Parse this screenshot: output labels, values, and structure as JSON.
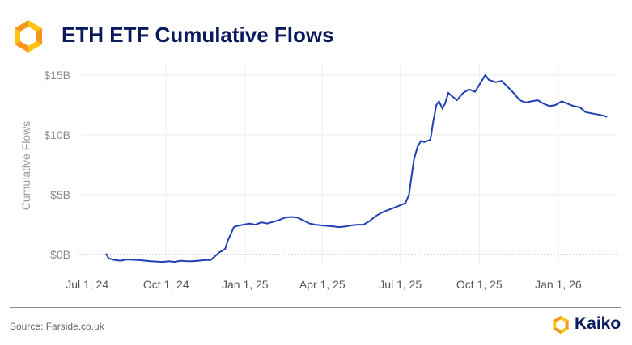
{
  "header": {
    "title": "ETH ETF Cumulative Flows",
    "logo_icon": "kaiko-logo-icon"
  },
  "footer": {
    "source": "Source: Farside.co.uk",
    "brand": "Kaiko"
  },
  "colors": {
    "line": "#1f3fb5",
    "title": "#0b1a5c",
    "logo_orange": "#f7941d",
    "logo_yellow": "#ffc20e",
    "zero_line": "#a0a0a0",
    "grid": "#eeeeee"
  },
  "chart_data": {
    "type": "line",
    "title": "ETH ETF Cumulative Flows",
    "xlabel": "",
    "ylabel": "Cumulative Flows",
    "xlim": [
      "2024-06-20",
      "2026-03-10"
    ],
    "ylim": [
      -1,
      16
    ],
    "x_ticks": [
      "2024-07-01",
      "2024-10-01",
      "2025-01-01",
      "2025-04-01",
      "2025-07-01",
      "2025-10-01",
      "2026-01-01"
    ],
    "x_tick_labels": [
      "Jul 1, 24",
      "Oct 1, 24",
      "Jan 1, 25",
      "Apr 1, 25",
      "Jul 1, 25",
      "Oct 1, 25",
      "Jan 1, 26"
    ],
    "y_ticks": [
      0,
      5,
      10,
      15
    ],
    "y_tick_labels": [
      "$0B",
      "$5B",
      "$10B",
      "$15B"
    ],
    "grid": true,
    "zero_line": "dashed",
    "series": [
      {
        "values": [
          [
            "2024-07-23",
            0.1
          ],
          [
            "2024-07-26",
            -0.3
          ],
          [
            "2024-08-02",
            -0.45
          ],
          [
            "2024-08-09",
            -0.5
          ],
          [
            "2024-08-16",
            -0.4
          ],
          [
            "2024-08-30",
            -0.45
          ],
          [
            "2024-09-13",
            -0.55
          ],
          [
            "2024-09-27",
            -0.6
          ],
          [
            "2024-10-04",
            -0.55
          ],
          [
            "2024-10-11",
            -0.6
          ],
          [
            "2024-10-18",
            -0.5
          ],
          [
            "2024-10-25",
            -0.55
          ],
          [
            "2024-11-01",
            -0.55
          ],
          [
            "2024-11-08",
            -0.5
          ],
          [
            "2024-11-15",
            -0.45
          ],
          [
            "2024-11-22",
            -0.45
          ],
          [
            "2024-11-29",
            0.0
          ],
          [
            "2024-12-02",
            0.2
          ],
          [
            "2024-12-05",
            0.3
          ],
          [
            "2024-12-09",
            0.5
          ],
          [
            "2024-12-12",
            1.2
          ],
          [
            "2024-12-16",
            1.8
          ],
          [
            "2024-12-19",
            2.3
          ],
          [
            "2024-12-23",
            2.4
          ],
          [
            "2024-12-30",
            2.5
          ],
          [
            "2025-01-06",
            2.6
          ],
          [
            "2025-01-13",
            2.5
          ],
          [
            "2025-01-20",
            2.7
          ],
          [
            "2025-01-27",
            2.6
          ],
          [
            "2025-02-03",
            2.75
          ],
          [
            "2025-02-10",
            2.9
          ],
          [
            "2025-02-17",
            3.1
          ],
          [
            "2025-02-24",
            3.15
          ],
          [
            "2025-03-03",
            3.1
          ],
          [
            "2025-03-10",
            2.85
          ],
          [
            "2025-03-17",
            2.6
          ],
          [
            "2025-03-24",
            2.5
          ],
          [
            "2025-03-31",
            2.45
          ],
          [
            "2025-04-07",
            2.4
          ],
          [
            "2025-04-14",
            2.35
          ],
          [
            "2025-04-21",
            2.3
          ],
          [
            "2025-04-28",
            2.35
          ],
          [
            "2025-05-05",
            2.45
          ],
          [
            "2025-05-12",
            2.5
          ],
          [
            "2025-05-19",
            2.5
          ],
          [
            "2025-05-26",
            2.8
          ],
          [
            "2025-06-02",
            3.2
          ],
          [
            "2025-06-09",
            3.5
          ],
          [
            "2025-06-16",
            3.7
          ],
          [
            "2025-06-23",
            3.9
          ],
          [
            "2025-06-30",
            4.1
          ],
          [
            "2025-07-07",
            4.3
          ],
          [
            "2025-07-11",
            5.0
          ],
          [
            "2025-07-14",
            6.5
          ],
          [
            "2025-07-17",
            8.0
          ],
          [
            "2025-07-21",
            9.0
          ],
          [
            "2025-07-25",
            9.5
          ],
          [
            "2025-07-29",
            9.4
          ],
          [
            "2025-08-05",
            9.6
          ],
          [
            "2025-08-08",
            11.0
          ],
          [
            "2025-08-12",
            12.5
          ],
          [
            "2025-08-15",
            12.8
          ],
          [
            "2025-08-19",
            12.2
          ],
          [
            "2025-08-22",
            12.6
          ],
          [
            "2025-08-26",
            13.5
          ],
          [
            "2025-08-29",
            13.3
          ],
          [
            "2025-09-05",
            12.9
          ],
          [
            "2025-09-12",
            13.5
          ],
          [
            "2025-09-19",
            13.8
          ],
          [
            "2025-09-26",
            13.6
          ],
          [
            "2025-10-03",
            14.4
          ],
          [
            "2025-10-08",
            15.0
          ],
          [
            "2025-10-12",
            14.6
          ],
          [
            "2025-10-20",
            14.4
          ],
          [
            "2025-10-27",
            14.5
          ],
          [
            "2025-11-03",
            14.0
          ],
          [
            "2025-11-10",
            13.5
          ],
          [
            "2025-11-17",
            12.9
          ],
          [
            "2025-11-24",
            12.7
          ],
          [
            "2025-12-01",
            12.8
          ],
          [
            "2025-12-08",
            12.9
          ],
          [
            "2025-12-15",
            12.6
          ],
          [
            "2025-12-22",
            12.4
          ],
          [
            "2025-12-29",
            12.5
          ],
          [
            "2026-01-05",
            12.8
          ],
          [
            "2026-01-12",
            12.6
          ],
          [
            "2026-01-19",
            12.4
          ],
          [
            "2026-01-26",
            12.3
          ],
          [
            "2026-02-02",
            11.9
          ],
          [
            "2026-02-09",
            11.8
          ],
          [
            "2026-02-16",
            11.7
          ],
          [
            "2026-02-23",
            11.6
          ],
          [
            "2026-02-27",
            11.5
          ]
        ]
      }
    ]
  }
}
